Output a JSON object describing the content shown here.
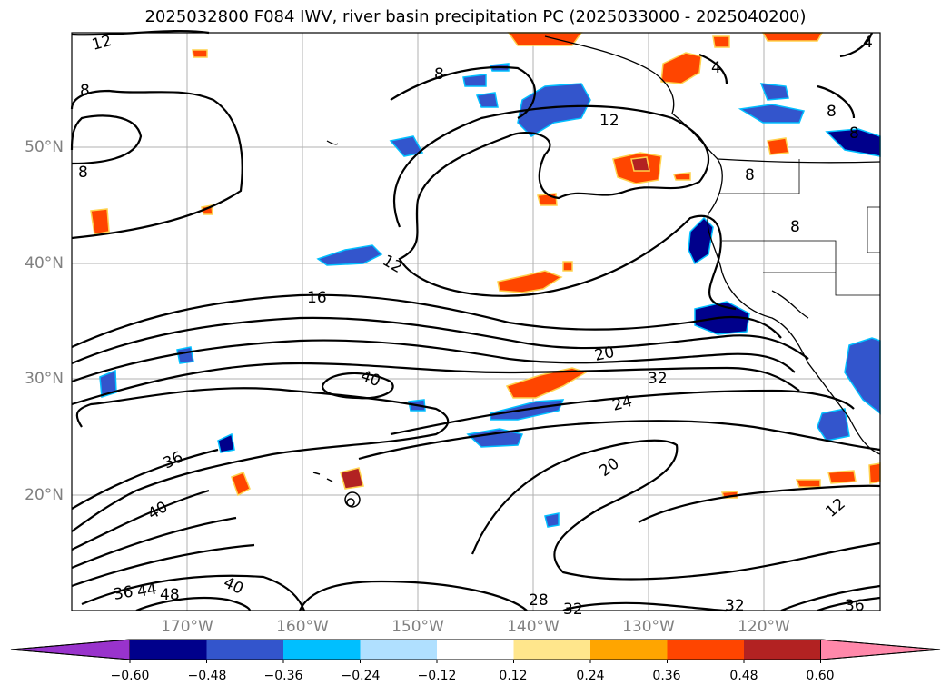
{
  "title": "2025032800 F084 IWV, river basin precipitation PC (2025033000 - 2025040200)",
  "lat_labels": [
    "50°N",
    "40°N",
    "30°N",
    "20°N"
  ],
  "lon_labels": [
    "170°W",
    "160°W",
    "150°W",
    "140°W",
    "130°W",
    "120°W"
  ],
  "colorbar": {
    "colors": [
      "#9933cc",
      "#00008b",
      "#3355cc",
      "#00bfff",
      "#b0e0ff",
      "#ffffff",
      "#ffe68c",
      "#ffa500",
      "#ff4500",
      "#b22222",
      "#ff88aa"
    ],
    "tick_labels": [
      "−0.60",
      "−0.48",
      "−0.36",
      "−0.24",
      "−0.12",
      "0.12",
      "0.24",
      "0.36",
      "0.48",
      "0.60"
    ]
  },
  "contour_labels": [
    "12",
    "8",
    "8",
    "8",
    "4",
    "4",
    "12",
    "8",
    "8",
    "8",
    "8",
    "12",
    "16",
    "20",
    "32",
    "24",
    "40",
    "36",
    "40",
    "20",
    "12",
    "36",
    "44",
    "48",
    "40",
    "28",
    "32",
    "32",
    "36"
  ]
}
